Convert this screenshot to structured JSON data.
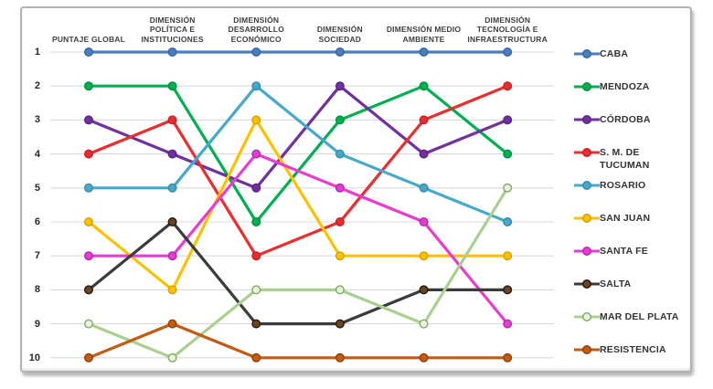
{
  "chart_data": {
    "type": "line",
    "subtype": "bump-ranking",
    "title": "",
    "grid": true,
    "legend_position": "right",
    "y_inverted": true,
    "ylim": [
      1,
      10
    ],
    "y_ticks": [
      "1",
      "2",
      "3",
      "4",
      "5",
      "6",
      "7",
      "8",
      "9",
      "10"
    ],
    "categories": [
      "PUNTAJE GLOBAL",
      "DIMENSIÓN\nPOLÍTICA E\nINSTITUCIONES",
      "DIMENSIÓN\nDESARROLLO\nECONÓMICO",
      "DIMENSIÓN\nSOCIEDAD",
      "DIMENSIÓN MEDIO\nAMBIENTE",
      "DIMENSIÓN\nTECNOLOGÍA E\nINFRAESTRUCTURA"
    ],
    "series": [
      {
        "name": "CABA",
        "color": "#4A7EBE",
        "marker_fill": "#4A7EBE",
        "marker_stroke": "#3465A8",
        "values": [
          1,
          1,
          1,
          1,
          1,
          1
        ]
      },
      {
        "name": "MENDOZA",
        "color": "#00B050",
        "marker_fill": "#00B050",
        "marker_stroke": "#00913F",
        "values": [
          2,
          2,
          6,
          3,
          2,
          4
        ]
      },
      {
        "name": "CÓRDOBA",
        "color": "#7030A0",
        "marker_fill": "#7030A0",
        "marker_stroke": "#5B2382",
        "values": [
          3,
          4,
          5,
          2,
          4,
          3
        ]
      },
      {
        "name": "S. M. DE TUCUMAN",
        "legend_label": "S. M.  DE\nTUCUMAN",
        "color": "#EB2D2F",
        "marker_fill": "#EB2D2F",
        "marker_stroke": "#C22126",
        "values": [
          4,
          3,
          7,
          6,
          3,
          2
        ]
      },
      {
        "name": "ROSARIO",
        "color": "#45A9CB",
        "marker_fill": "#45A9CB",
        "marker_stroke": "#358DA8",
        "values": [
          5,
          5,
          2,
          4,
          5,
          6
        ]
      },
      {
        "name": "SAN JUAN",
        "color": "#FFC000",
        "marker_fill": "#FFC000",
        "marker_stroke": "#D99E00",
        "values": [
          6,
          8,
          3,
          7,
          7,
          7
        ]
      },
      {
        "name": "SANTA FE",
        "color": "#EA3BD0",
        "marker_fill": "#EA3BD0",
        "marker_stroke": "#A82DB4",
        "values": [
          7,
          7,
          4,
          5,
          6,
          9
        ]
      },
      {
        "name": "SALTA",
        "color": "#3B3B3B",
        "marker_fill": "#6B4423",
        "marker_stroke": "#26180B",
        "values": [
          8,
          6,
          9,
          9,
          8,
          8
        ]
      },
      {
        "name": "MAR DEL PLATA",
        "color": "#A9D08E",
        "marker_fill": "#EAF3E3",
        "marker_stroke": "#7EAC5B",
        "values": [
          9,
          10,
          8,
          8,
          9,
          5
        ]
      },
      {
        "name": "RESISTENCIA",
        "color": "#C55A11",
        "marker_fill": "#C55A11",
        "marker_stroke": "#8F4109",
        "values": [
          10,
          9,
          10,
          10,
          10,
          10
        ]
      }
    ],
    "gridline_color": "#DADADA"
  }
}
